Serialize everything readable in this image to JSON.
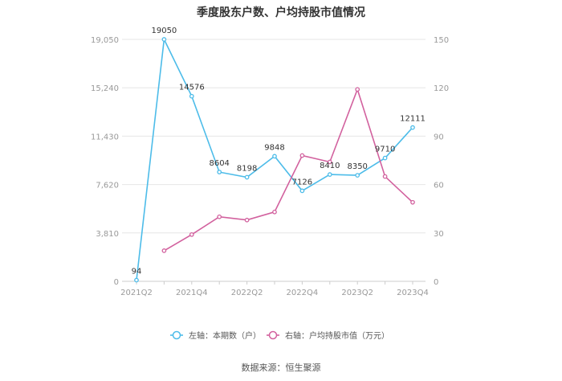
{
  "chart_data": {
    "type": "line",
    "title": "季度股东户数、户均持股市值情况",
    "source": "数据来源：恒生聚源",
    "x": [
      "2021Q2",
      "2021Q3",
      "2021Q4",
      "2022Q1",
      "2022Q2",
      "2022Q3",
      "2022Q4",
      "2023Q1",
      "2023Q2",
      "2023Q3",
      "2023Q4"
    ],
    "x_tick_labels": [
      "2021Q2",
      "2021Q4",
      "2022Q2",
      "2022Q4",
      "2023Q2",
      "2023Q4"
    ],
    "y_left": {
      "ylim": [
        0,
        19050
      ],
      "ticks": [
        "0",
        "3,810",
        "7,620",
        "11,430",
        "15,240",
        "19,050"
      ]
    },
    "y_right": {
      "ylim": [
        0,
        150
      ],
      "ticks": [
        "0",
        "30",
        "60",
        "90",
        "120",
        "150"
      ]
    },
    "grid": true,
    "legend_position": "bottom",
    "series": [
      {
        "name": "左轴：本期数（户）",
        "axis": "left",
        "color": "#4DBCE9",
        "values": [
          94,
          19050,
          14576,
          8604,
          8198,
          9848,
          7126,
          8410,
          8350,
          9710,
          12111
        ],
        "labels": [
          "94",
          "19050",
          "14576",
          "8604",
          "8198",
          "9848",
          "7126",
          "8410",
          "8350",
          "9710",
          "12111"
        ]
      },
      {
        "name": "右轴：户均持股市值（万元）",
        "axis": "right",
        "color": "#D2619E",
        "values": [
          null,
          19,
          29,
          40,
          38,
          43,
          78,
          74,
          119,
          65,
          49
        ]
      }
    ]
  }
}
